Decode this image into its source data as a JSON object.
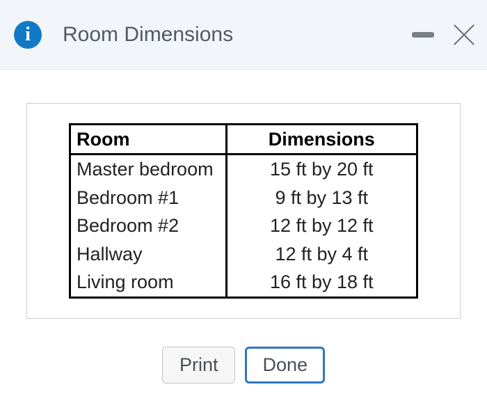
{
  "header": {
    "title": "Room Dimensions",
    "icon_bg": "#1279c6",
    "icon_fg": "#ffffff"
  },
  "table": {
    "columns": [
      "Room",
      "Dimensions"
    ],
    "rows": [
      [
        "Master bedroom",
        "15 ft by 20 ft"
      ],
      [
        "Bedroom #1",
        "9 ft by 13 ft"
      ],
      [
        "Bedroom #2",
        "12 ft by 12 ft"
      ],
      [
        "Hallway",
        "12 ft by 4 ft"
      ],
      [
        "Living room",
        "16 ft by 18 ft"
      ]
    ],
    "border_color": "#000000",
    "card_border_color": "#c9cdd2",
    "font_size": 27
  },
  "buttons": {
    "print": "Print",
    "done": "Done",
    "done_border_color": "#2f77c4"
  },
  "colors": {
    "header_bg": "#f2f6fb",
    "header_border": "#e2e6eb",
    "title_color": "#555a60",
    "control_color": "#7a7f85"
  }
}
